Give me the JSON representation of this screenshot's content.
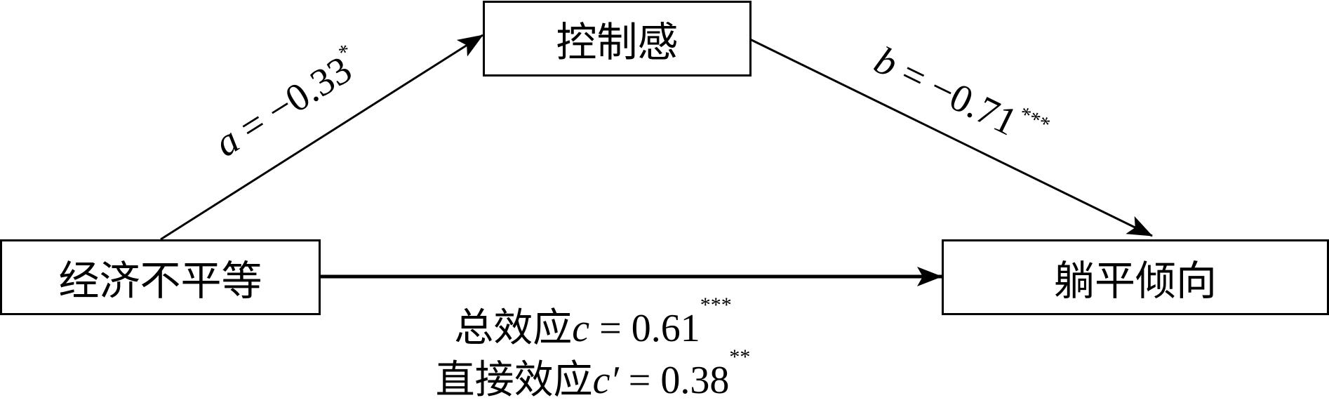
{
  "nodes": {
    "mediator": "控制感",
    "independent": "经济不平等",
    "dependent": "躺平倾向"
  },
  "paths": {
    "a": {
      "symbol": "a",
      "eq": " = −0.33",
      "sig": "*"
    },
    "b": {
      "symbol": "b",
      "eq": " = −0.71",
      "sig": "***"
    },
    "total": {
      "prefix": "总效应",
      "symbol": "c",
      "eq": " = 0.61",
      "sig": "***"
    },
    "direct": {
      "prefix": "直接效应",
      "symbol": "c′",
      "eq": " = 0.38",
      "sig": "**"
    }
  }
}
